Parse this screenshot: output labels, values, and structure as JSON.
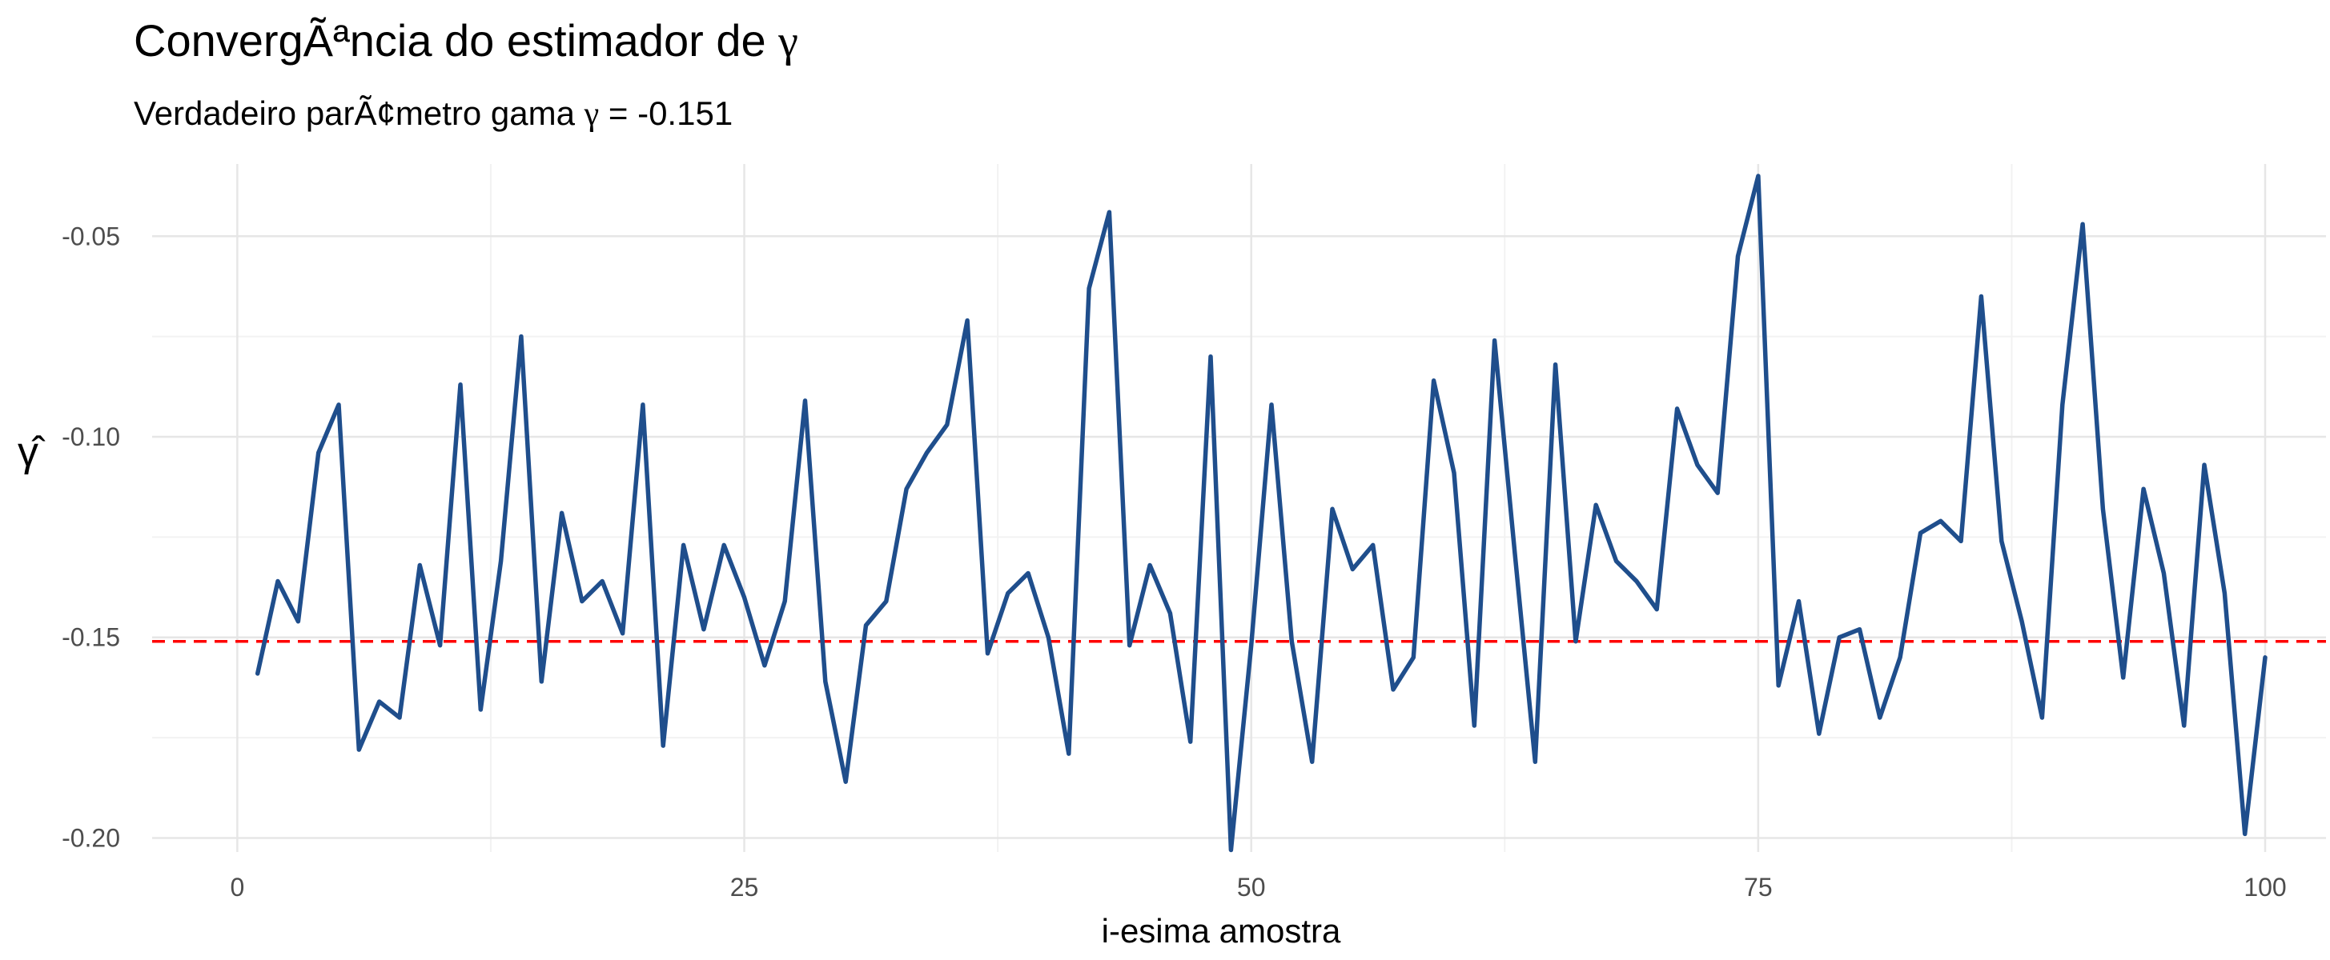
{
  "title": {
    "prefix": "ConvergÃªncia do estimador de ",
    "symbol": "γ"
  },
  "subtitle": {
    "prefix": "Verdadeiro parÃ¢metro gama ",
    "symbol": "γ",
    "suffix": " = -0.151"
  },
  "chart_data": {
    "type": "line",
    "title": "ConvergÃªncia do estimador de γ",
    "subtitle": "Verdadeiro parÃ¢metro gama γ = -0.151",
    "xlabel": "i-esima amostra",
    "ylabel": "γ̂",
    "xlim": [
      -4.2,
      103
    ],
    "ylim": [
      -0.2035,
      -0.032
    ],
    "x_ticks": [
      0,
      25,
      50,
      75,
      100
    ],
    "x_tick_labels": [
      "0",
      "25",
      "50",
      "75",
      "100"
    ],
    "y_ticks": [
      -0.2,
      -0.15,
      -0.1,
      -0.05
    ],
    "y_tick_labels": [
      "-0.20",
      "-0.15",
      "-0.10",
      "-0.05"
    ],
    "grid": true,
    "series": [
      {
        "color": "#1f4e8c",
        "x": [
          1,
          2,
          3,
          4,
          5,
          6,
          7,
          8,
          9,
          10,
          11,
          12,
          13,
          14,
          15,
          16,
          17,
          18,
          19,
          20,
          21,
          22,
          23,
          24,
          25,
          26,
          27,
          28,
          29,
          30,
          31,
          32,
          33,
          34,
          35,
          36,
          37,
          38,
          39,
          40,
          41,
          42,
          43,
          44,
          45,
          46,
          47,
          48,
          49,
          50,
          51,
          52,
          53,
          54,
          55,
          56,
          57,
          58,
          59,
          60,
          61,
          62,
          63,
          64,
          65,
          66,
          67,
          68,
          69,
          70,
          71,
          72,
          73,
          74,
          75,
          76,
          77,
          78,
          79,
          80,
          81,
          82,
          83,
          84,
          85,
          86,
          87,
          88,
          89,
          90,
          91,
          92,
          93,
          94,
          95,
          96,
          97,
          98,
          99,
          100
        ],
        "values": [
          -0.159,
          -0.136,
          -0.146,
          -0.104,
          -0.092,
          -0.178,
          -0.166,
          -0.17,
          -0.132,
          -0.152,
          -0.087,
          -0.168,
          -0.131,
          -0.075,
          -0.161,
          -0.119,
          -0.141,
          -0.136,
          -0.149,
          -0.092,
          -0.177,
          -0.127,
          -0.148,
          -0.127,
          -0.14,
          -0.157,
          -0.141,
          -0.091,
          -0.161,
          -0.186,
          -0.147,
          -0.141,
          -0.113,
          -0.104,
          -0.097,
          -0.071,
          -0.154,
          -0.139,
          -0.134,
          -0.15,
          -0.179,
          -0.063,
          -0.044,
          -0.152,
          -0.132,
          -0.144,
          -0.176,
          -0.08,
          -0.203,
          -0.152,
          -0.092,
          -0.151,
          -0.181,
          -0.118,
          -0.133,
          -0.127,
          -0.163,
          -0.155,
          -0.086,
          -0.109,
          -0.172,
          -0.076,
          -0.129,
          -0.181,
          -0.082,
          -0.151,
          -0.117,
          -0.131,
          -0.136,
          -0.143,
          -0.093,
          -0.107,
          -0.114,
          -0.055,
          -0.035,
          -0.162,
          -0.141,
          -0.174,
          -0.15,
          -0.148,
          -0.17,
          -0.155,
          -0.124,
          -0.121,
          -0.126,
          -0.065,
          -0.126,
          -0.146,
          -0.17,
          -0.092,
          -0.047,
          -0.118,
          -0.16,
          -0.113,
          -0.134,
          -0.172,
          -0.107,
          -0.139,
          -0.199,
          -0.155
        ]
      }
    ],
    "reference_line": {
      "y": -0.151,
      "color": "#ff0000",
      "style": "dashed"
    }
  }
}
